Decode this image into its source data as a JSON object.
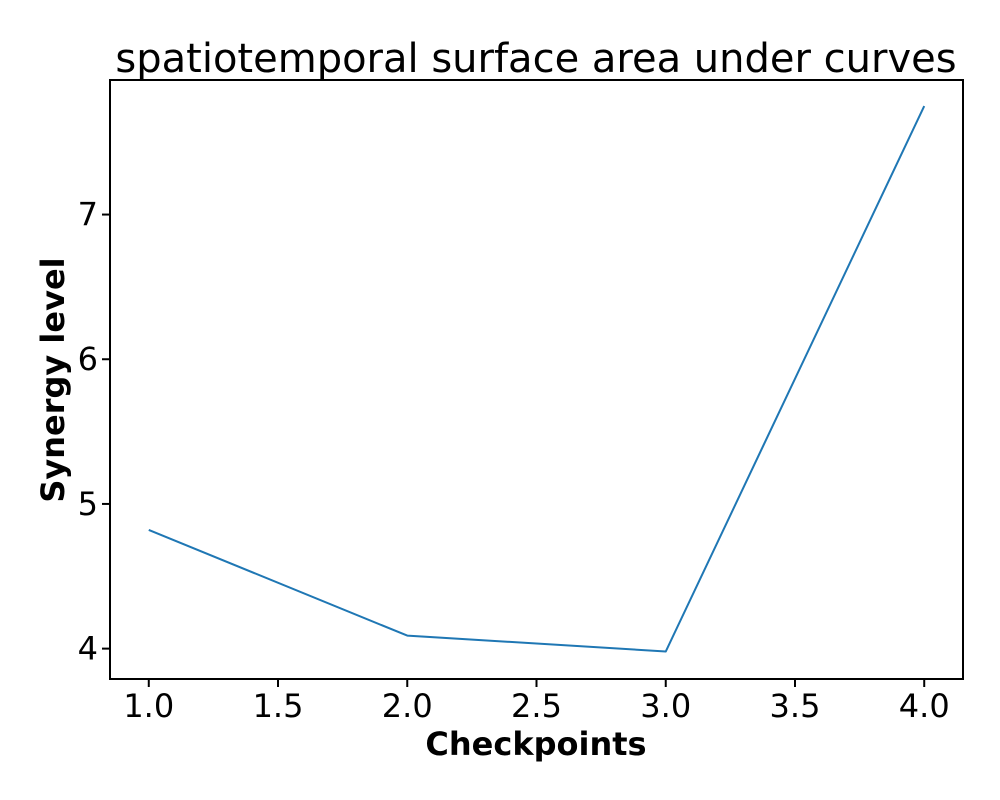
{
  "chart_data": {
    "type": "line",
    "title": "spatiotemporal surface area under curves",
    "xlabel": "Checkpoints",
    "ylabel": "Synergy level",
    "xlim": [
      0.85,
      4.15
    ],
    "ylim": [
      3.79,
      7.93
    ],
    "xticks": [
      1.0,
      1.5,
      2.0,
      2.5,
      3.0,
      3.5,
      4.0
    ],
    "xtick_labels": [
      "1.0",
      "1.5",
      "2.0",
      "2.5",
      "3.0",
      "3.5",
      "4.0"
    ],
    "yticks": [
      4,
      5,
      6,
      7
    ],
    "ytick_labels": [
      "4",
      "5",
      "6",
      "7"
    ],
    "grid": false,
    "series": [
      {
        "x": [
          1.0,
          2.0,
          3.0,
          4.0
        ],
        "values": [
          4.82,
          4.09,
          3.98,
          7.75
        ],
        "color": "#1f77b4"
      }
    ]
  }
}
